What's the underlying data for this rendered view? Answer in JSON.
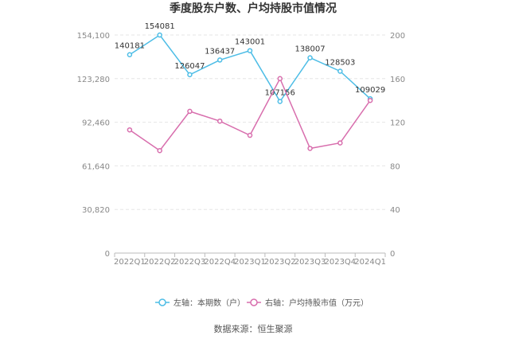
{
  "chart_data": {
    "type": "line",
    "title": "季度股东户数、户均持股市值情况",
    "categories": [
      "2022Q1",
      "2022Q2",
      "2022Q3",
      "2022Q4",
      "2023Q1",
      "2023Q2",
      "2023Q3",
      "2023Q4",
      "2024Q1"
    ],
    "left_axis": {
      "ticks": [
        "0",
        "30,820",
        "61,640",
        "92,460",
        "123,280",
        "154,100"
      ],
      "ylim": [
        0,
        154100
      ]
    },
    "right_axis": {
      "ticks": [
        "0",
        "40",
        "80",
        "120",
        "160",
        "200"
      ],
      "ylim": [
        0,
        200
      ]
    },
    "series": [
      {
        "name": "左轴：本期数（户）",
        "axis": "left",
        "color": "#4dbde6",
        "values": [
          140181,
          154081,
          126047,
          136437,
          143001,
          107156,
          138007,
          128503,
          109029
        ],
        "labels": [
          "140181",
          "154081",
          "126047",
          "136437",
          "143001",
          "107156",
          "138007",
          "128503",
          "109029"
        ]
      },
      {
        "name": "右轴：户均持股市值（万元）",
        "axis": "right",
        "color": "#d86ead",
        "values": [
          113,
          94,
          130,
          121,
          108,
          160,
          96,
          101,
          140
        ]
      }
    ],
    "grid": true,
    "legend_position": "bottom"
  },
  "source": "数据来源：恒生聚源"
}
